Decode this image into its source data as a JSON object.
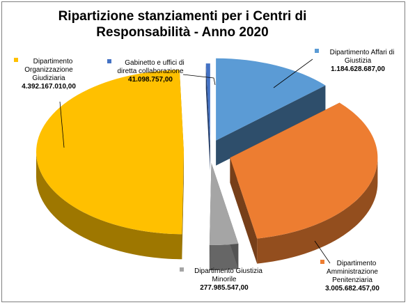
{
  "chart_data": {
    "type": "pie",
    "title": [
      "Ripartizione stanziamenti per i Centri di",
      "Responsabilità - Anno 2020"
    ],
    "grid": false,
    "legend": "none",
    "slices": [
      {
        "key": "affari",
        "label": [
          "Dipartimento Affari di",
          "Giustizia"
        ],
        "value": 1184628687,
        "value_text": "1.184.628.687,00",
        "color": "#5b9bd5"
      },
      {
        "key": "penitenziaria",
        "label": [
          "Dipartimento",
          "Amministrazione",
          "Penitenziaria"
        ],
        "value": 3005682457,
        "value_text": "3.005.682.457,00",
        "color": "#ed7d31"
      },
      {
        "key": "minorile",
        "label": [
          "Dipartimento Giustizia",
          "Minorile"
        ],
        "value": 277985547,
        "value_text": "277.985.547,00",
        "color": "#a5a5a5"
      },
      {
        "key": "giudiziaria",
        "label": [
          "Dipartimento",
          "Organizzazione",
          "Giudiziaria"
        ],
        "value": 4392167010,
        "value_text": "4.392.167.010,00",
        "color": "#ffc000"
      },
      {
        "key": "gabinetto",
        "label": [
          "Gabinetto e uffici di",
          "diretta collaborazione"
        ],
        "value": 41098757,
        "value_text": "41.098.757,00",
        "color": "#4472c4"
      }
    ]
  }
}
